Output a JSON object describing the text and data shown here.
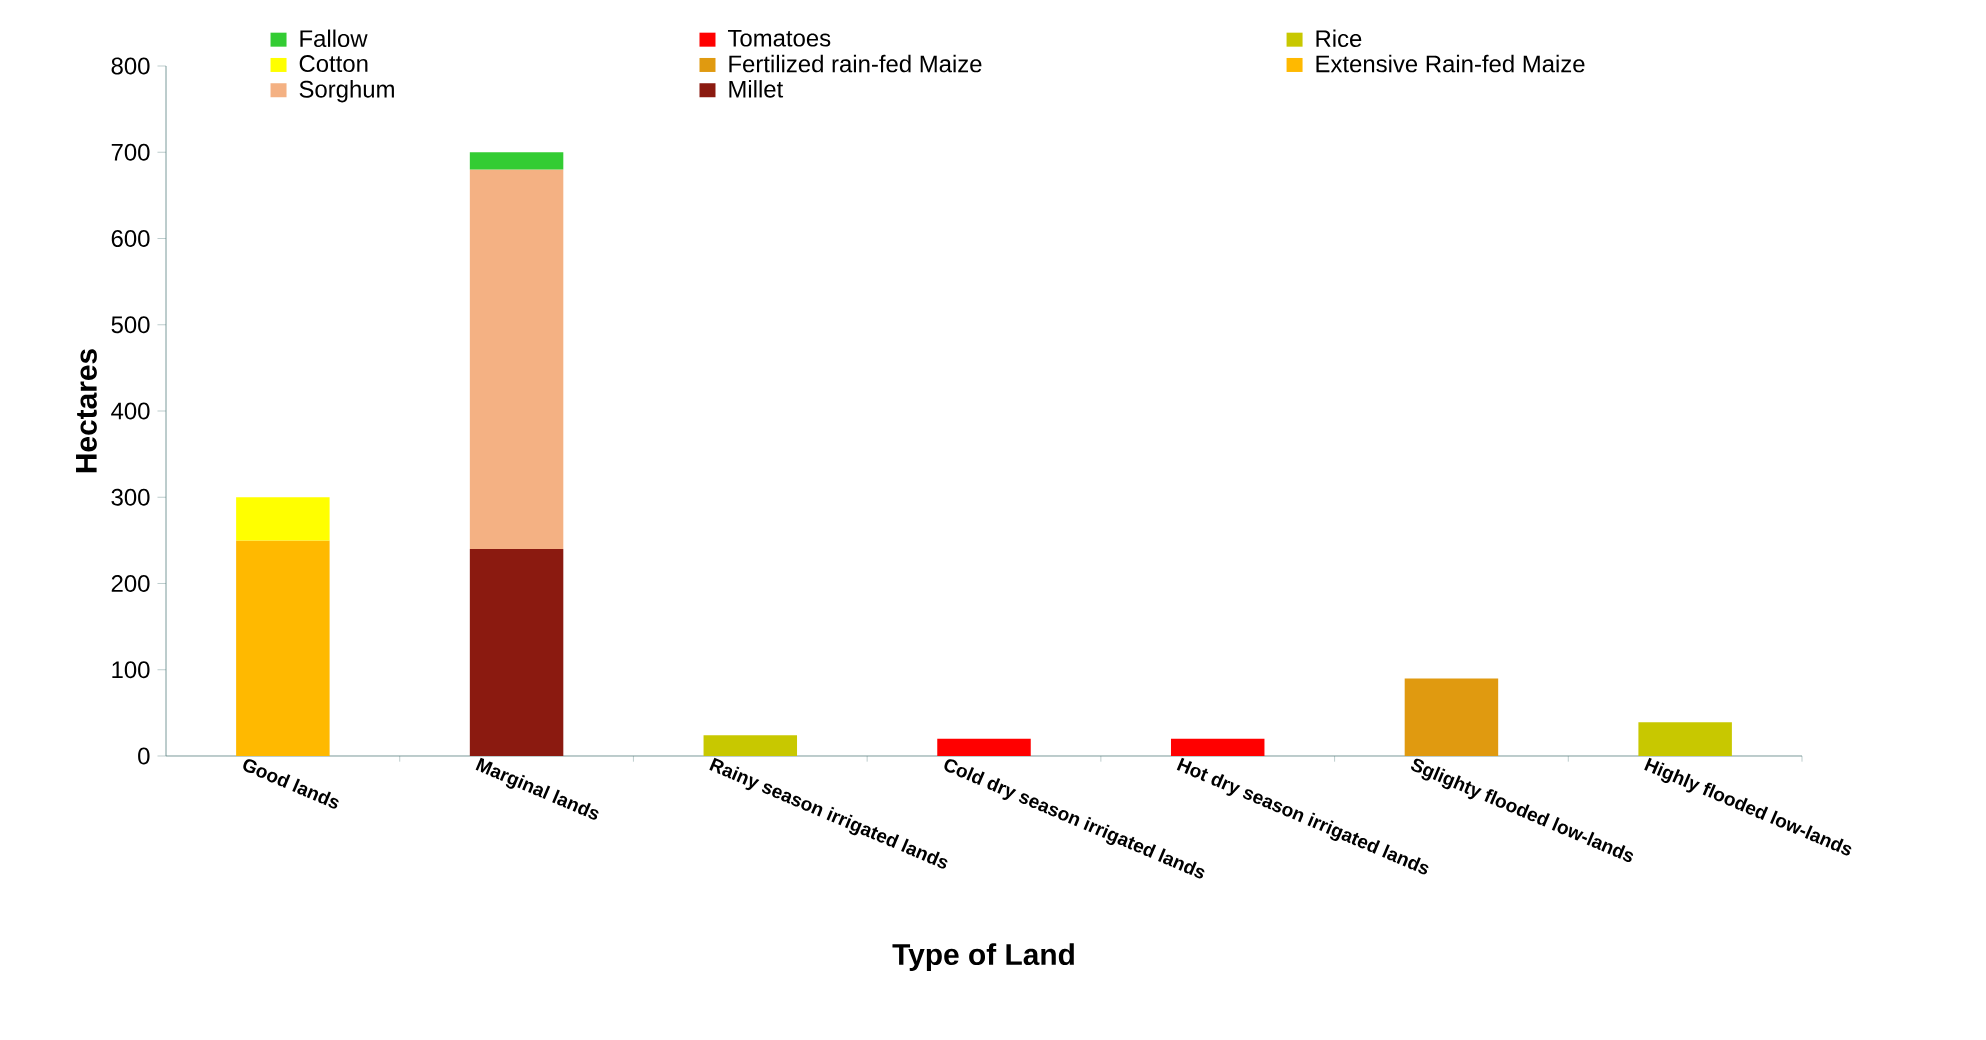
{
  "chart_data": {
    "type": "bar",
    "stacked": true,
    "xlabel": "Type of Land",
    "ylabel": "Hectares",
    "categories": [
      "Good lands",
      "Marginal lands",
      "Rainy season irrigated lands",
      "Cold dry season irrigated lands",
      "Hot dry season irrigated lands",
      "Sglighty flooded low-lands",
      "Highly flooded low-lands"
    ],
    "ylim": [
      0,
      800
    ],
    "yticks": [
      0,
      100,
      200,
      300,
      400,
      500,
      600,
      700,
      800
    ],
    "legend": "top",
    "series": [
      {
        "name": "Millet",
        "color": "#8b1a10",
        "values": [
          null,
          240,
          null,
          null,
          null,
          null,
          null
        ]
      },
      {
        "name": "Sorghum",
        "color": "#f4b183",
        "values": [
          null,
          440,
          null,
          null,
          null,
          null,
          null
        ]
      },
      {
        "name": "Extensive  Rain-fed Maize",
        "color": "#ffb900",
        "values": [
          250,
          null,
          null,
          null,
          null,
          null,
          null
        ]
      },
      {
        "name": "Fertilized rain-fed Maize",
        "color": "#e09a10",
        "values": [
          null,
          null,
          null,
          null,
          null,
          90,
          null
        ]
      },
      {
        "name": "Cotton",
        "color": "#ffff00",
        "values": [
          50,
          null,
          null,
          null,
          null,
          null,
          null
        ]
      },
      {
        "name": "Rice",
        "color": "#c8c800",
        "values": [
          null,
          null,
          24,
          null,
          null,
          null,
          39
        ]
      },
      {
        "name": "Tomatoes",
        "color": "#ff0000",
        "values": [
          null,
          null,
          null,
          20,
          20,
          null,
          null
        ]
      },
      {
        "name": "Fallow",
        "color": "#33cc33",
        "values": [
          null,
          20,
          null,
          null,
          null,
          null,
          null
        ]
      }
    ]
  }
}
